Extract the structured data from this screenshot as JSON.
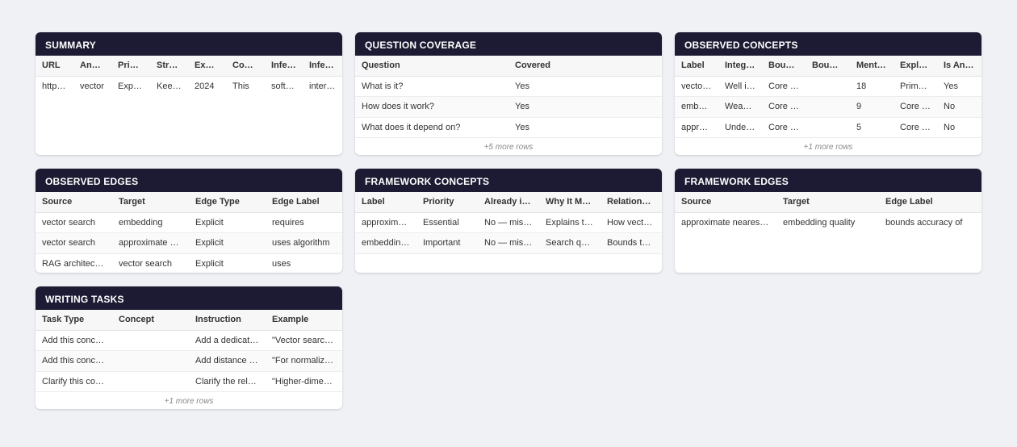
{
  "cards": {
    "summary": {
      "title": "SUMMARY",
      "columns": [
        "URL",
        "Anchor",
        "Primary",
        "Structure",
        "Expiry",
        "Content",
        "Inferred",
        "Inferred"
      ],
      "rows": [
        [
          "https://",
          "vector",
          "Explains",
          "Keeps",
          "2024",
          "This",
          "software",
          "intermediate"
        ]
      ]
    },
    "question_coverage": {
      "title": "QUESTION COVERAGE",
      "columns": [
        "Question",
        "Covered"
      ],
      "rows": [
        [
          "What is it?",
          "Yes"
        ],
        [
          "How does it work?",
          "Yes"
        ],
        [
          "What does it depend on?",
          "Yes"
        ]
      ],
      "more": "+5 more rows"
    },
    "observed_concepts": {
      "title": "OBSERVED CONCEPTS",
      "columns": [
        "Label",
        "Integration",
        "Boundary",
        "Boundary",
        "Mentions",
        "Explanation",
        "Is Anchor"
      ],
      "rows": [
        [
          "vector search",
          "Well integrated",
          "Core concept",
          "",
          "18",
          "Primary topic",
          "Yes"
        ],
        [
          "embedding",
          "Weakly linked",
          "Core concept",
          "",
          "9",
          "Core input",
          "No"
        ],
        [
          "approximate nearest neighbor",
          "Under-explained",
          "Core concept",
          "",
          "5",
          "Core method",
          "No"
        ]
      ],
      "more": "+1 more rows"
    },
    "observed_edges": {
      "title": "OBSERVED EDGES",
      "columns": [
        "Source",
        "Target",
        "Edge Type",
        "Edge Label"
      ],
      "rows": [
        [
          "vector search",
          "embedding",
          "Explicit",
          "requires"
        ],
        [
          "vector search",
          "approximate nearest neighbor",
          "Explicit",
          "uses algorithm"
        ],
        [
          "RAG architecture",
          "vector search",
          "Explicit",
          "uses"
        ]
      ]
    },
    "framework_concepts": {
      "title": "FRAMEWORK CONCEPTS",
      "columns": [
        "Label",
        "Priority",
        "Already in page",
        "Why It Matters",
        "Relationship"
      ],
      "rows": [
        [
          "approximate nearest neighbor",
          "Essential",
          "No — missing",
          "Explains the speed",
          "How vector search scales"
        ],
        [
          "embedding quality",
          "Important",
          "No — missing",
          "Search quality depends on it",
          "Bounds the accuracy"
        ]
      ]
    },
    "framework_edges": {
      "title": "FRAMEWORK EDGES",
      "columns": [
        "Source",
        "Target",
        "Edge Label"
      ],
      "rows": [
        [
          "approximate nearest neighbor",
          "embedding quality",
          "bounds accuracy of"
        ]
      ]
    },
    "writing_tasks": {
      "title": "WRITING TASKS",
      "columns": [
        "Task Type",
        "Concept",
        "Instruction",
        "Example"
      ],
      "rows": [
        [
          "Add this concept",
          "",
          "Add a dedicated section",
          "\"Vector search relies on\""
        ],
        [
          "Add this concept",
          "",
          "Add distance metric detail",
          "\"For normalized vectors\""
        ],
        [
          "Clarify this concept",
          "",
          "Clarify the relationship",
          "\"Higher-dimensional embeddings\""
        ]
      ],
      "more": "+1 more rows"
    }
  }
}
